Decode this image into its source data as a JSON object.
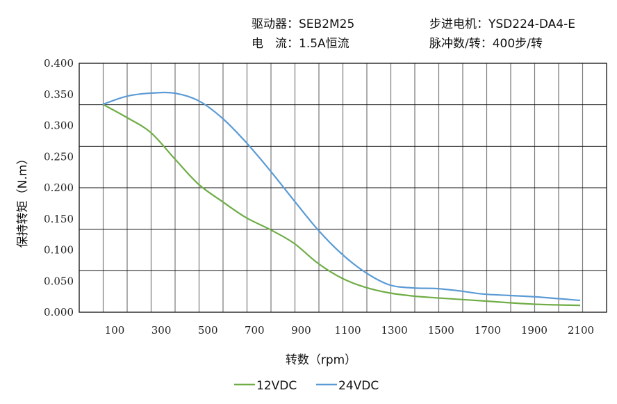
{
  "header": {
    "driver": "驱动器：SEB2M25",
    "motor": "步进电机：YSD224-DA4-E",
    "current": "电　流：1.5A恒流",
    "pulses": "脉冲数/转：400步/转"
  },
  "chart_data": {
    "type": "line",
    "xlabel": "转数（rpm）",
    "ylabel": "保持转矩（N.m）",
    "ylim": [
      0,
      0.4
    ],
    "yticks": [
      "0.000",
      "0.050",
      "0.100",
      "0.150",
      "0.200",
      "0.250",
      "0.300",
      "0.350",
      "0.400"
    ],
    "xticks": [
      "100",
      "300",
      "500",
      "700",
      "900",
      "1100",
      "1300",
      "1500",
      "1700",
      "1900",
      "2100"
    ],
    "grid": true,
    "legend": "bottom",
    "series": [
      {
        "name": "12VDC",
        "color": "#70ad47",
        "x": [
          100,
          200,
          300,
          400,
          500,
          600,
          700,
          800,
          900,
          1000,
          1100,
          1200,
          1300,
          1400,
          1500,
          1700,
          1900,
          2100
        ],
        "y": [
          0.334,
          0.313,
          0.289,
          0.247,
          0.206,
          0.178,
          0.152,
          0.133,
          0.111,
          0.079,
          0.055,
          0.04,
          0.031,
          0.026,
          0.023,
          0.018,
          0.013,
          0.011
        ]
      },
      {
        "name": "24VDC",
        "color": "#5b9bd5",
        "x": [
          100,
          200,
          300,
          400,
          500,
          600,
          700,
          800,
          900,
          1000,
          1100,
          1200,
          1300,
          1400,
          1500,
          1600,
          1700,
          1900,
          2100
        ],
        "y": [
          0.334,
          0.347,
          0.352,
          0.352,
          0.34,
          0.312,
          0.273,
          0.228,
          0.18,
          0.133,
          0.094,
          0.064,
          0.044,
          0.039,
          0.038,
          0.034,
          0.029,
          0.025,
          0.019
        ]
      }
    ]
  }
}
